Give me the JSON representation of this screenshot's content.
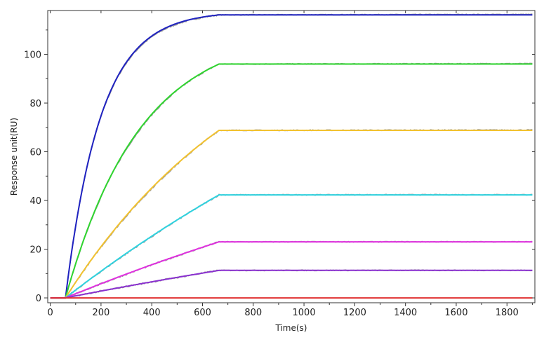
{
  "chart_data": {
    "type": "line",
    "xlabel": "Time(s)",
    "ylabel": "Response unit(RU)",
    "xlim": [
      -10,
      1910
    ],
    "ylim": [
      -2,
      118
    ],
    "xticks": [
      0,
      200,
      400,
      600,
      800,
      1000,
      1200,
      1400,
      1600,
      1800
    ],
    "yticks": [
      0,
      20,
      40,
      60,
      80,
      100
    ],
    "grid": false,
    "legend": "none",
    "x_start": 0,
    "injection_start": 60,
    "association_end": 665,
    "x_end": 1900,
    "series": [
      {
        "color": "#1f22c0",
        "plateau": 116.2,
        "k": 0.0072
      },
      {
        "color": "#2fd52f",
        "plateau": 96.0,
        "k": 0.0034
      },
      {
        "color": "#f2c230",
        "plateau": 68.8,
        "k": 0.0013
      },
      {
        "color": "#2fd3e0",
        "plateau": 42.3,
        "k": 0.0005
      },
      {
        "color": "#e030e0",
        "plateau": 23.0,
        "k": 0.0004
      },
      {
        "color": "#8a30d0",
        "plateau": 11.3,
        "k": 0.0003
      },
      {
        "color": "#e03030",
        "plateau": 0.0,
        "k": 0.001
      }
    ],
    "raw_trace_color": "#999999"
  }
}
